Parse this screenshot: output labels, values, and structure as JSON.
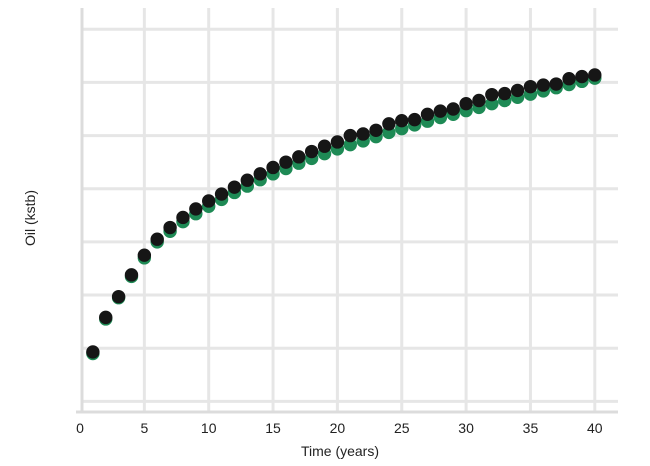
{
  "chart_data": {
    "type": "scatter",
    "title": "",
    "xlabel": "Time (years)",
    "ylabel": "Oil (kstb)",
    "xlim": [
      0,
      42
    ],
    "ylim": [
      0,
      7.6
    ],
    "xticks": [
      0,
      5,
      10,
      15,
      20,
      25,
      30,
      35,
      40
    ],
    "xtick_labels": [
      "0",
      "5",
      "10",
      "15",
      "20",
      "25",
      "30",
      "35",
      "40"
    ],
    "y_gridlines": [
      0.2,
      1.2,
      2.2,
      3.2,
      4.2,
      5.2,
      6.2,
      7.2
    ],
    "y_tick_labels_shown": false,
    "grid": true,
    "legend": "none",
    "x": [
      1,
      2,
      3,
      4,
      5,
      6,
      7,
      8,
      9,
      10,
      11,
      12,
      13,
      14,
      15,
      16,
      17,
      18,
      19,
      20,
      21,
      22,
      23,
      24,
      25,
      26,
      27,
      28,
      29,
      30,
      31,
      32,
      33,
      34,
      35,
      36,
      37,
      38,
      39,
      40
    ],
    "series": [
      {
        "color": "#1e8a55",
        "values": [
          1.1,
          1.75,
          2.15,
          2.55,
          2.9,
          3.2,
          3.4,
          3.58,
          3.73,
          3.87,
          4.0,
          4.13,
          4.25,
          4.37,
          4.48,
          4.58,
          4.68,
          4.77,
          4.86,
          4.95,
          5.03,
          5.1,
          5.18,
          5.26,
          5.33,
          5.4,
          5.47,
          5.54,
          5.6,
          5.67,
          5.73,
          5.8,
          5.86,
          5.92,
          5.98,
          6.04,
          6.1,
          6.16,
          6.22,
          6.28
        ]
      },
      {
        "color": "#161616",
        "values": [
          1.13,
          1.78,
          2.17,
          2.58,
          2.95,
          3.25,
          3.47,
          3.66,
          3.82,
          3.97,
          4.1,
          4.23,
          4.36,
          4.48,
          4.6,
          4.7,
          4.8,
          4.9,
          5.0,
          5.08,
          5.2,
          5.23,
          5.3,
          5.42,
          5.48,
          5.5,
          5.6,
          5.66,
          5.7,
          5.8,
          5.86,
          5.97,
          5.99,
          6.05,
          6.12,
          6.15,
          6.17,
          6.27,
          6.31,
          6.34
        ]
      }
    ]
  }
}
